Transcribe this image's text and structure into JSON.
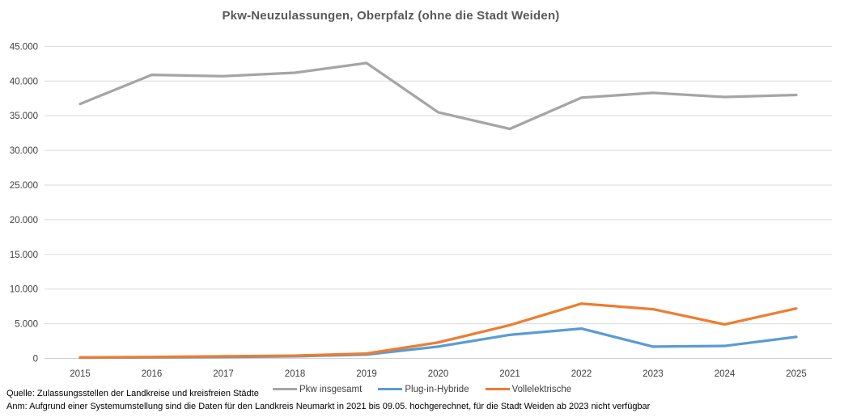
{
  "title": "Pkw-Neuzulassungen, Oberpfalz (ohne die Stadt Weiden)",
  "footer": {
    "source": "Quelle: Zulassungsstellen der Landkreise und kreisfreien Städte",
    "note": "Anm: Aufgrund einer Systemumstellung sind die Daten für den Landkreis Neumarkt in 2021 bis 09.05. hochgerechnet, für die Stadt Weiden ab 2023 nicht verfügbar"
  },
  "colors": {
    "title_text": "#595959",
    "axis_text": "#404040",
    "gridline": "#D9D9D9",
    "axis_line": "#D0D0D0",
    "series_total": "#A5A5A5",
    "series_phev": "#5B9BD5",
    "series_bev": "#ED7D31"
  },
  "chart_data": {
    "type": "line",
    "title": "Pkw-Neuzulassungen, Oberpfalz (ohne die Stadt Weiden)",
    "categories": [
      "2015",
      "2016",
      "2017",
      "2018",
      "2019",
      "2020",
      "2021",
      "2022",
      "2023",
      "2024",
      "2025"
    ],
    "series": [
      {
        "name": "Pkw insgesamt",
        "color": "#A5A5A5",
        "values": [
          36700,
          40900,
          40700,
          41200,
          42600,
          35500,
          33100,
          37600,
          38300,
          37700,
          38000
        ]
      },
      {
        "name": "Plug-in-Hybride",
        "color": "#5B9BD5",
        "values": [
          100,
          150,
          200,
          300,
          550,
          1700,
          3400,
          4300,
          1700,
          1800,
          3100
        ]
      },
      {
        "name": "Vollelektrische",
        "color": "#ED7D31",
        "values": [
          150,
          200,
          300,
          400,
          700,
          2300,
          4800,
          7900,
          7100,
          4900,
          7200
        ]
      }
    ],
    "xlabel": "",
    "ylabel": "",
    "ylim": [
      0,
      45000
    ],
    "ytick_step": 5000,
    "ytick_labels": [
      "0",
      "5.000",
      "10.000",
      "15.000",
      "20.000",
      "25.000",
      "30.000",
      "35.000",
      "40.000",
      "45.000"
    ],
    "grid": "horizontal",
    "legend_position": "bottom"
  }
}
